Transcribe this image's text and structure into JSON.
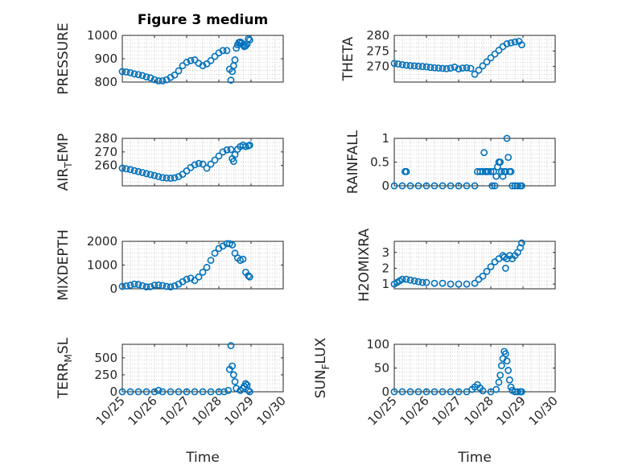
{
  "figure": {
    "title": "Figure 3 medium",
    "marker_color": "#0072BD"
  },
  "chart_data": [
    {
      "type": "scatter",
      "ylabel": "PRESSURE",
      "xlim": [
        "10/25",
        "10/30"
      ],
      "ylim": [
        800,
        1000
      ],
      "yticks": [
        "800",
        "900",
        "1000"
      ],
      "xticks": [
        "10/25",
        "10/26",
        "10/27",
        "10/28",
        "10/29",
        "10/30"
      ],
      "grid": true,
      "x": [
        "10/25 00:00",
        "10/25 03:00",
        "10/25 06:00",
        "10/25 09:00",
        "10/25 12:00",
        "10/25 15:00",
        "10/25 18:00",
        "10/25 21:00",
        "10/26 00:00",
        "10/26 03:00",
        "10/26 06:00",
        "10/26 09:00",
        "10/26 12:00",
        "10/26 15:00",
        "10/26 18:00",
        "10/26 21:00",
        "10/27 00:00",
        "10/27 03:00",
        "10/27 06:00",
        "10/27 09:00",
        "10/27 12:00",
        "10/27 15:00",
        "10/27 18:00",
        "10/27 21:00",
        "10/28 00:00",
        "10/28 03:00",
        "10/28 06:00",
        "10/28 08:00",
        "10/28 09:00",
        "10/28 10:00",
        "10/28 11:00",
        "10/28 12:00",
        "10/28 13:00",
        "10/28 14:00",
        "10/28 15:00",
        "10/28 16:00",
        "10/28 17:00",
        "10/28 18:00",
        "10/28 19:00",
        "10/28 20:00",
        "10/28 21:00",
        "10/28 22:00",
        "10/28 23:00"
      ],
      "y": [
        845,
        843,
        840,
        835,
        832,
        828,
        822,
        818,
        810,
        805,
        805,
        810,
        820,
        830,
        848,
        870,
        885,
        892,
        895,
        880,
        870,
        878,
        892,
        910,
        925,
        935,
        935,
        855,
        808,
        845,
        870,
        895,
        945,
        960,
        970,
        972,
        968,
        958,
        952,
        955,
        962,
        985,
        980
      ]
    },
    {
      "type": "scatter",
      "ylabel": "THETA",
      "xlim": [
        "10/25",
        "10/30"
      ],
      "ylim": [
        265,
        280
      ],
      "yticks": [
        "270",
        "275",
        "280"
      ],
      "xticks": [
        "10/25",
        "10/26",
        "10/27",
        "10/28",
        "10/29",
        "10/30"
      ],
      "grid": true,
      "x": [
        "10/25 00:00",
        "10/25 03:00",
        "10/25 06:00",
        "10/25 09:00",
        "10/25 12:00",
        "10/25 15:00",
        "10/25 18:00",
        "10/25 21:00",
        "10/26 00:00",
        "10/26 03:00",
        "10/26 06:00",
        "10/26 09:00",
        "10/26 12:00",
        "10/26 15:00",
        "10/26 18:00",
        "10/26 21:00",
        "10/27 00:00",
        "10/27 03:00",
        "10/27 06:00",
        "10/27 09:00",
        "10/27 12:00",
        "10/27 15:00",
        "10/27 18:00",
        "10/27 21:00",
        "10/28 00:00",
        "10/28 03:00",
        "10/28 06:00",
        "10/28 09:00",
        "10/28 12:00",
        "10/28 15:00",
        "10/28 18:00",
        "10/28 21:00",
        "10/28 23:00"
      ],
      "y": [
        271,
        270.8,
        270.6,
        270.4,
        270.3,
        270.2,
        270.1,
        270,
        269.9,
        269.7,
        269.6,
        269.5,
        269.4,
        269.3,
        269.5,
        269.8,
        269.2,
        269.5,
        269.6,
        269.4,
        267.5,
        268.8,
        270.2,
        271.5,
        272.8,
        274,
        275.2,
        276.4,
        277.3,
        277.6,
        277.9,
        278.1,
        277
      ]
    },
    {
      "type": "scatter",
      "ylabel": "AIR_TEMP",
      "xlim": [
        "10/25",
        "10/30"
      ],
      "ylim": [
        245,
        280
      ],
      "yticks": [
        "260",
        "270",
        "280"
      ],
      "xticks": [
        "10/25",
        "10/26",
        "10/27",
        "10/28",
        "10/29",
        "10/30"
      ],
      "grid": true,
      "x": [
        "10/25 00:00",
        "10/25 03:00",
        "10/25 06:00",
        "10/25 09:00",
        "10/25 12:00",
        "10/25 15:00",
        "10/25 18:00",
        "10/25 21:00",
        "10/26 00:00",
        "10/26 03:00",
        "10/26 06:00",
        "10/26 09:00",
        "10/26 12:00",
        "10/26 15:00",
        "10/26 18:00",
        "10/26 21:00",
        "10/27 00:00",
        "10/27 03:00",
        "10/27 06:00",
        "10/27 09:00",
        "10/27 12:00",
        "10/27 15:00",
        "10/27 18:00",
        "10/27 21:00",
        "10/28 00:00",
        "10/28 03:00",
        "10/28 06:00",
        "10/28 09:00",
        "10/28 10:00",
        "10/28 11:00",
        "10/28 12:00",
        "10/28 14:00",
        "10/28 16:00",
        "10/28 18:00",
        "10/28 20:00",
        "10/28 22:00",
        "10/28 23:00"
      ],
      "y": [
        258,
        257.5,
        257,
        256.2,
        255.5,
        254.8,
        254,
        253.3,
        252.6,
        251.8,
        251.1,
        250.8,
        250.6,
        250.9,
        251.8,
        253.5,
        256,
        258.5,
        260.5,
        261.5,
        261,
        258,
        261,
        264,
        267,
        270,
        271.5,
        271.8,
        265,
        263,
        268,
        272,
        274,
        275,
        274,
        274.5,
        275
      ]
    },
    {
      "type": "scatter",
      "ylabel": "RAINFALL",
      "xlim": [
        "10/25",
        "10/30"
      ],
      "ylim": [
        0,
        1
      ],
      "yticks": [
        "0",
        "0.5",
        "1"
      ],
      "xticks": [
        "10/25",
        "10/26",
        "10/27",
        "10/28",
        "10/29",
        "10/30"
      ],
      "grid": true,
      "x": [
        "10/25 00:00",
        "10/25 06:00",
        "10/25 08:00",
        "10/25 09:00",
        "10/25 12:00",
        "10/25 18:00",
        "10/26 00:00",
        "10/26 06:00",
        "10/26 12:00",
        "10/26 18:00",
        "10/27 00:00",
        "10/27 06:00",
        "10/27 12:00",
        "10/27 14:00",
        "10/27 16:00",
        "10/27 18:00",
        "10/27 19:00",
        "10/27 20:00",
        "10/27 21:00",
        "10/27 22:00",
        "10/28 00:00",
        "10/28 01:00",
        "10/28 02:00",
        "10/28 03:00",
        "10/28 04:00",
        "10/28 05:00",
        "10/28 06:00",
        "10/28 07:00",
        "10/28 08:00",
        "10/28 09:00",
        "10/28 10:00",
        "10/28 11:00",
        "10/28 12:00",
        "10/28 13:00",
        "10/28 14:00",
        "10/28 15:00",
        "10/28 16:00",
        "10/28 18:00",
        "10/28 20:00",
        "10/28 22:00",
        "10/28 23:00"
      ],
      "y": [
        0,
        0,
        0.3,
        0.3,
        0,
        0,
        0,
        0,
        0,
        0,
        0,
        0,
        0,
        0.3,
        0.3,
        0.3,
        0.7,
        0.3,
        0.3,
        0.3,
        0.3,
        0,
        0.3,
        0,
        0.2,
        0.4,
        0.5,
        0.5,
        0.3,
        0.2,
        0.3,
        0.3,
        1,
        0.6,
        0.3,
        0.3,
        0,
        0,
        0,
        0,
        0
      ]
    },
    {
      "type": "scatter",
      "ylabel": "MIXDEPTH",
      "xlim": [
        "10/25",
        "10/30"
      ],
      "ylim": [
        0,
        2000
      ],
      "yticks": [
        "0",
        "1000",
        "2000"
      ],
      "xticks": [
        "10/25",
        "10/26",
        "10/27",
        "10/28",
        "10/29",
        "10/30"
      ],
      "grid": true,
      "x": [
        "10/25 00:00",
        "10/25 03:00",
        "10/25 06:00",
        "10/25 09:00",
        "10/25 12:00",
        "10/25 15:00",
        "10/25 18:00",
        "10/25 21:00",
        "10/26 00:00",
        "10/26 03:00",
        "10/26 06:00",
        "10/26 09:00",
        "10/26 12:00",
        "10/26 15:00",
        "10/26 18:00",
        "10/26 21:00",
        "10/27 00:00",
        "10/27 03:00",
        "10/27 06:00",
        "10/27 09:00",
        "10/27 12:00",
        "10/27 15:00",
        "10/27 18:00",
        "10/27 21:00",
        "10/28 00:00",
        "10/28 03:00",
        "10/28 06:00",
        "10/28 08:00",
        "10/28 10:00",
        "10/28 12:00",
        "10/28 14:00",
        "10/28 16:00",
        "10/28 18:00",
        "10/28 20:00",
        "10/28 22:00",
        "10/28 23:00"
      ],
      "y": [
        100,
        120,
        150,
        200,
        180,
        130,
        80,
        90,
        150,
        160,
        140,
        100,
        80,
        120,
        200,
        300,
        400,
        450,
        350,
        500,
        700,
        900,
        1200,
        1500,
        1700,
        1800,
        1900,
        1900,
        1850,
        1500,
        1300,
        1200,
        1250,
        700,
        550,
        500
      ]
    },
    {
      "type": "scatter",
      "ylabel": "H2OMIXRA",
      "xlim": [
        "10/25",
        "10/30"
      ],
      "ylim": [
        0.7,
        3.7
      ],
      "yticks": [
        "1",
        "2",
        "3"
      ],
      "xticks": [
        "10/25",
        "10/26",
        "10/27",
        "10/28",
        "10/29",
        "10/30"
      ],
      "grid": true,
      "x": [
        "10/25 00:00",
        "10/25 02:00",
        "10/25 04:00",
        "10/25 06:00",
        "10/25 09:00",
        "10/25 12:00",
        "10/25 15:00",
        "10/25 18:00",
        "10/25 21:00",
        "10/26 00:00",
        "10/26 06:00",
        "10/26 12:00",
        "10/26 18:00",
        "10/27 00:00",
        "10/27 06:00",
        "10/27 12:00",
        "10/27 15:00",
        "10/27 18:00",
        "10/27 21:00",
        "10/28 00:00",
        "10/28 03:00",
        "10/28 06:00",
        "10/28 09:00",
        "10/28 10:00",
        "10/28 11:00",
        "10/28 12:00",
        "10/28 14:00",
        "10/28 16:00",
        "10/28 18:00",
        "10/28 20:00",
        "10/28 22:00",
        "10/28 23:00"
      ],
      "y": [
        1,
        1.1,
        1.2,
        1.3,
        1.3,
        1.25,
        1.2,
        1.15,
        1.1,
        1.1,
        1.05,
        1.05,
        1,
        1,
        1,
        1.05,
        1.3,
        1.5,
        1.8,
        2.1,
        2.4,
        2.6,
        2.8,
        2.7,
        2,
        2.6,
        2.8,
        2.6,
        2.8,
        3,
        3.3,
        3.6
      ]
    },
    {
      "type": "scatter",
      "ylabel": "TERR_MSL",
      "xlim": [
        "10/25",
        "10/30"
      ],
      "ylim": [
        0,
        700
      ],
      "yticks": [
        "0",
        "250",
        "500"
      ],
      "xticks": [
        "10/25",
        "10/26",
        "10/27",
        "10/28",
        "10/29",
        "10/30"
      ],
      "xlabel": "Time",
      "grid": true,
      "x": [
        "10/25 00:00",
        "10/25 06:00",
        "10/25 12:00",
        "10/25 18:00",
        "10/26 00:00",
        "10/26 03:00",
        "10/26 06:00",
        "10/26 12:00",
        "10/26 18:00",
        "10/27 00:00",
        "10/27 06:00",
        "10/27 12:00",
        "10/27 18:00",
        "10/28 00:00",
        "10/28 04:00",
        "10/28 07:00",
        "10/28 08:00",
        "10/28 09:00",
        "10/28 10:00",
        "10/28 11:00",
        "10/28 12:00",
        "10/28 13:00",
        "10/28 16:00",
        "10/28 18:00",
        "10/28 19:00",
        "10/28 20:00",
        "10/28 21:00",
        "10/28 22:00",
        "10/28 23:00"
      ],
      "y": [
        0,
        0,
        0,
        0,
        0,
        20,
        0,
        0,
        0,
        0,
        0,
        0,
        0,
        0,
        0,
        20,
        330,
        680,
        380,
        250,
        150,
        50,
        20,
        50,
        80,
        120,
        100,
        20,
        0
      ]
    },
    {
      "type": "scatter",
      "ylabel": "SUN_FLUX",
      "xlim": [
        "10/25",
        "10/30"
      ],
      "ylim": [
        0,
        100
      ],
      "yticks": [
        "0",
        "50",
        "100"
      ],
      "xticks": [
        "10/25",
        "10/26",
        "10/27",
        "10/28",
        "10/29",
        "10/30"
      ],
      "xlabel": "Time",
      "grid": true,
      "x": [
        "10/25 00:00",
        "10/25 06:00",
        "10/25 12:00",
        "10/25 18:00",
        "10/26 00:00",
        "10/26 06:00",
        "10/26 12:00",
        "10/26 18:00",
        "10/27 00:00",
        "10/27 06:00",
        "10/27 10:00",
        "10/27 12:00",
        "10/27 14:00",
        "10/27 16:00",
        "10/27 18:00",
        "10/28 00:00",
        "10/28 04:00",
        "10/28 06:00",
        "10/28 07:00",
        "10/28 08:00",
        "10/28 09:00",
        "10/28 10:00",
        "10/28 11:00",
        "10/28 12:00",
        "10/28 13:00",
        "10/28 14:00",
        "10/28 15:00",
        "10/28 16:00",
        "10/28 18:00",
        "10/28 20:00",
        "10/28 22:00",
        "10/28 23:00"
      ],
      "y": [
        0,
        0,
        0,
        0,
        0,
        0,
        0,
        0,
        0,
        0,
        5,
        10,
        15,
        8,
        2,
        0,
        5,
        20,
        35,
        55,
        70,
        85,
        80,
        65,
        45,
        25,
        10,
        3,
        0,
        0,
        0,
        0
      ]
    }
  ]
}
